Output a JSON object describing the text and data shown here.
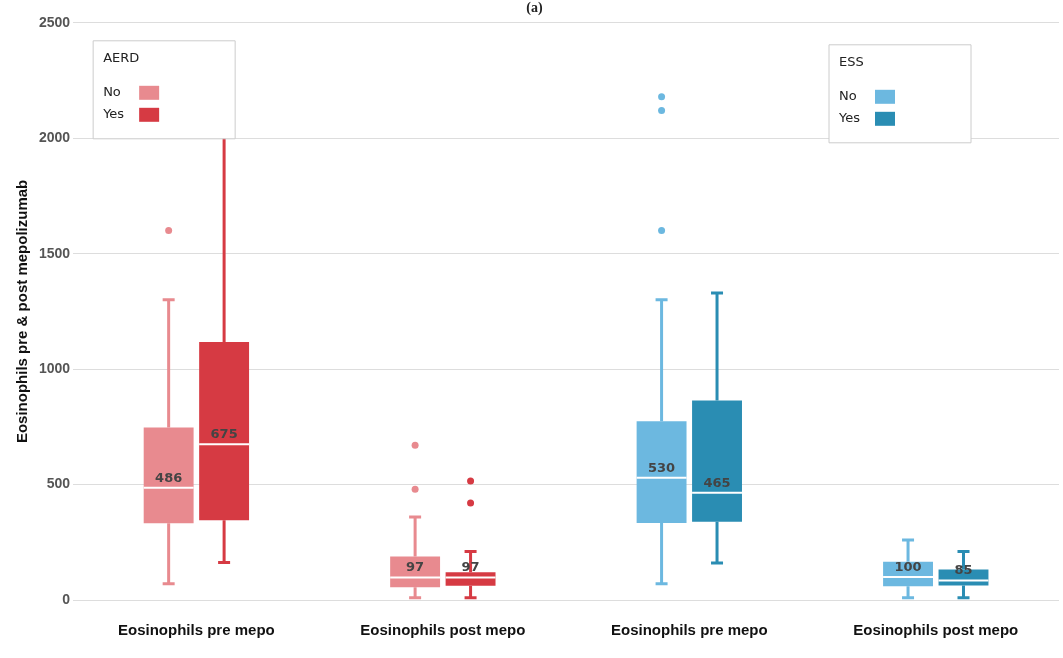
{
  "chart_data": {
    "type": "box",
    "title": "(a)",
    "ylabel": "Eosinophils pre & post mepolizumab",
    "categories": [
      "Eosinophils pre mepo",
      "Eosinophils post mepo",
      "Eosinophils pre mepo",
      "Eosinophils post mepo"
    ],
    "ylim": [
      0,
      2500
    ],
    "yticks": [
      0,
      500,
      1000,
      1500,
      2000,
      2500
    ],
    "grid": "y",
    "legend": "top",
    "annotations": [
      "AERD",
      "ESS"
    ],
    "series": [
      {
        "name": "No",
        "color": "#e88a8f",
        "value_labels": [
          "486",
          "97",
          null,
          null
        ],
        "boxes": [
          {
            "low": 70,
            "q1": 332,
            "median": 486,
            "q3": 747,
            "high": 1300,
            "outliers": [
              1600
            ]
          },
          {
            "low": 10,
            "q1": 55,
            "median": 97,
            "q3": 188,
            "high": 360,
            "outliers": [
              670,
              480
            ]
          },
          null,
          null
        ]
      },
      {
        "name": "Yes",
        "color": "#d63a43",
        "value_labels": [
          "675",
          "97",
          null,
          null
        ],
        "boxes": [
          {
            "low": 162,
            "q1": 345,
            "median": 675,
            "q3": 1117,
            "high": 2180
          },
          {
            "low": 10,
            "q1": 62,
            "median": 97,
            "q3": 120,
            "high": 210,
            "outliers": [
              515,
              420
            ]
          },
          null,
          null
        ]
      },
      {
        "name": "No",
        "color": "#6cb8e0",
        "value_labels": [
          null,
          null,
          "530",
          "100"
        ],
        "boxes": [
          null,
          null,
          {
            "low": 70,
            "q1": 333,
            "median": 530,
            "q3": 774,
            "high": 1300,
            "outliers": [
              2180,
              2120,
              1600
            ]
          },
          {
            "low": 10,
            "q1": 60,
            "median": 100,
            "q3": 166,
            "high": 260
          }
        ]
      },
      {
        "name": "Yes",
        "color": "#2a8db3",
        "value_labels": [
          null,
          null,
          "465",
          "85"
        ],
        "boxes": [
          null,
          null,
          {
            "low": 160,
            "q1": 339,
            "median": 465,
            "q3": 864,
            "high": 1330
          },
          {
            "low": 10,
            "q1": 63,
            "median": 85,
            "q3": 132,
            "high": 210
          }
        ]
      }
    ]
  }
}
